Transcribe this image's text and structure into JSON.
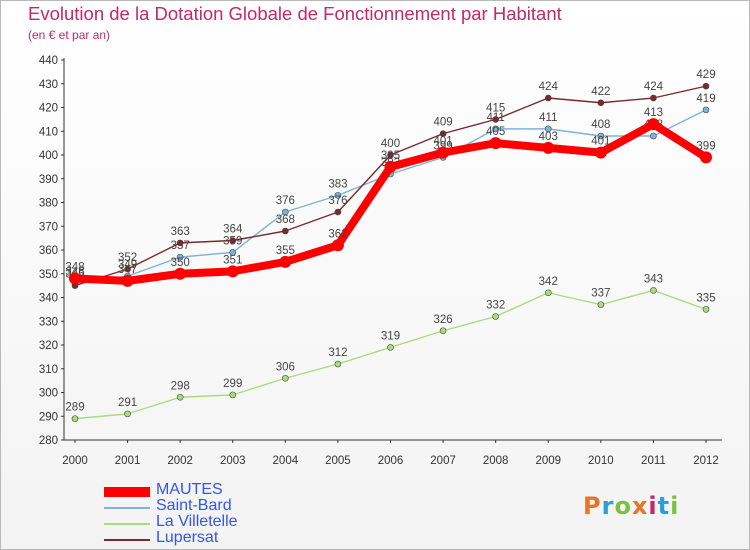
{
  "header": {
    "title": "Evolution de la Dotation Globale de Fonctionnement par Habitant",
    "subtitle": "(en € et par an)"
  },
  "logo": {
    "text": "Proxiti",
    "colors": [
      "#e8742a",
      "#2a9fd6",
      "#7bc043",
      "#e8742a",
      "#c2296a",
      "#2a9fd6",
      "#7bc043"
    ]
  },
  "chart_data": {
    "type": "line",
    "title": "Evolution de la Dotation Globale de Fonctionnement par Habitant",
    "subtitle": "(en € et par an)",
    "xlabel": "",
    "ylabel": "",
    "categories": [
      "2000",
      "2001",
      "2002",
      "2003",
      "2004",
      "2005",
      "2006",
      "2007",
      "2008",
      "2009",
      "2010",
      "2011",
      "2012"
    ],
    "ylim": [
      280,
      440
    ],
    "ytick_step": 10,
    "grid": false,
    "legend_position": "bottom-left",
    "series": [
      {
        "name": "MAUTES",
        "color": "#ff0000",
        "values": [
          348,
          347,
          350,
          351,
          355,
          362,
          395,
          401,
          405,
          403,
          401,
          413,
          399
        ]
      },
      {
        "name": "Saint-Bard",
        "color": "#7eb2d8",
        "values": [
          346,
          349,
          357,
          359,
          376,
          383,
          392,
          399,
          411,
          411,
          408,
          408,
          419
        ]
      },
      {
        "name": "La Villetelle",
        "color": "#a8dc7c",
        "values": [
          289,
          291,
          298,
          299,
          306,
          312,
          319,
          326,
          332,
          342,
          337,
          343,
          335
        ]
      },
      {
        "name": "Lupersat",
        "color": "#7a2a2a",
        "values": [
          345,
          352,
          363,
          364,
          368,
          376,
          400,
          409,
          415,
          424,
          422,
          424,
          429
        ]
      }
    ]
  }
}
